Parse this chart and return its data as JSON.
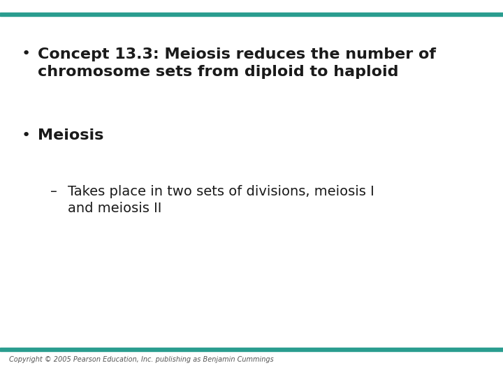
{
  "background_color": "#ffffff",
  "top_bar_color": "#2a9d8f",
  "bottom_bar_color": "#2a9d8f",
  "text_color": "#1a1a1a",
  "main_fontsize": 16,
  "sub_fontsize": 14,
  "bullet1_line1": "Concept 13.3: Meiosis reduces the number of",
  "bullet1_line2": "chromosome sets from diploid to haploid",
  "bullet2_text": "Meiosis",
  "sub_line1": "Takes place in two sets of divisions, meiosis I",
  "sub_line2": "and meiosis II",
  "copyright_text": "Copyright © 2005 Pearson Education, Inc. publishing as Benjamin Cummings",
  "copyright_fontsize": 7,
  "copyright_color": "#555555"
}
